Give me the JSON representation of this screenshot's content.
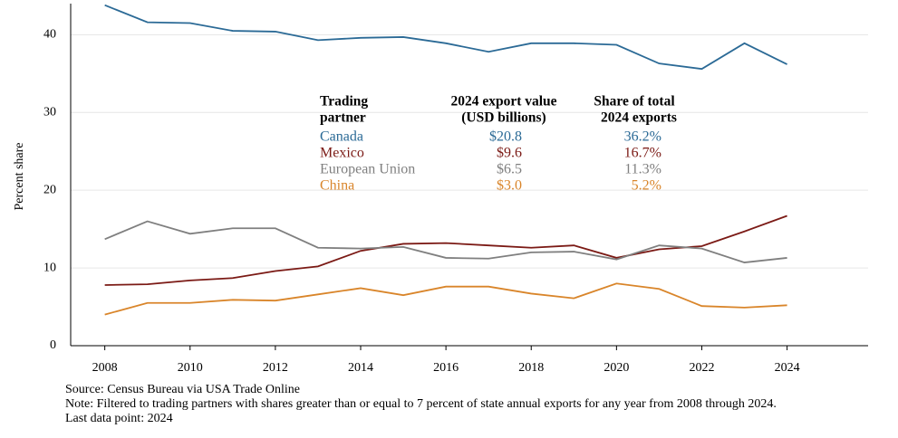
{
  "chart_data": {
    "type": "line",
    "y_label": "Percent share",
    "x": [
      2008,
      2009,
      2010,
      2011,
      2012,
      2013,
      2014,
      2015,
      2016,
      2017,
      2018,
      2019,
      2020,
      2021,
      2022,
      2023,
      2024
    ],
    "xlim": [
      2007.2,
      2025.9
    ],
    "xticks": [
      2008,
      2010,
      2012,
      2014,
      2016,
      2018,
      2020,
      2022,
      2024
    ],
    "ylim": [
      0,
      44
    ],
    "yticks": [
      0,
      10,
      20,
      30,
      40
    ],
    "grid": true,
    "series": [
      {
        "name": "Canada",
        "color": "#2b6a96",
        "values": [
          43.8,
          41.6,
          41.5,
          40.5,
          40.4,
          39.3,
          39.6,
          39.7,
          38.9,
          37.8,
          38.9,
          38.9,
          38.7,
          36.3,
          35.6,
          38.9,
          36.2
        ]
      },
      {
        "name": "Mexico",
        "color": "#7b1a15",
        "values": [
          7.8,
          7.9,
          8.4,
          8.7,
          9.6,
          10.2,
          12.2,
          13.1,
          13.2,
          12.9,
          12.6,
          12.9,
          11.3,
          12.4,
          12.8,
          14.7,
          16.7
        ]
      },
      {
        "name": "European Union",
        "color": "#7f7f7f",
        "values": [
          13.7,
          16.0,
          14.4,
          15.1,
          15.1,
          12.6,
          12.5,
          12.7,
          11.3,
          11.2,
          12.0,
          12.1,
          11.1,
          12.9,
          12.5,
          10.7,
          11.3
        ]
      },
      {
        "name": "China",
        "color": "#d9852a",
        "values": [
          4.0,
          5.5,
          5.5,
          5.9,
          5.8,
          6.6,
          7.4,
          6.5,
          7.6,
          7.6,
          6.7,
          6.1,
          8.0,
          7.3,
          5.1,
          4.9,
          5.2
        ]
      }
    ],
    "annotation_table": {
      "columns": [
        [
          "Trading",
          "partner"
        ],
        [
          "2024 export value",
          "(USD billions)"
        ],
        [
          "Share of total",
          "2024 exports"
        ]
      ],
      "rows": [
        [
          "Canada",
          "$20.8",
          "36.2%"
        ],
        [
          "Mexico",
          "$9.6",
          "16.7%"
        ],
        [
          "European Union",
          "$6.5",
          "11.3%"
        ],
        [
          "China",
          "$3.0",
          "5.2%"
        ]
      ]
    },
    "footnotes": [
      "Source: Census Bureau via USA Trade Online",
      "Note: Filtered to trading partners with shares greater than or equal to 7 percent of state annual exports for any year from 2008 through 2024.",
      "Last data point: 2024"
    ]
  }
}
